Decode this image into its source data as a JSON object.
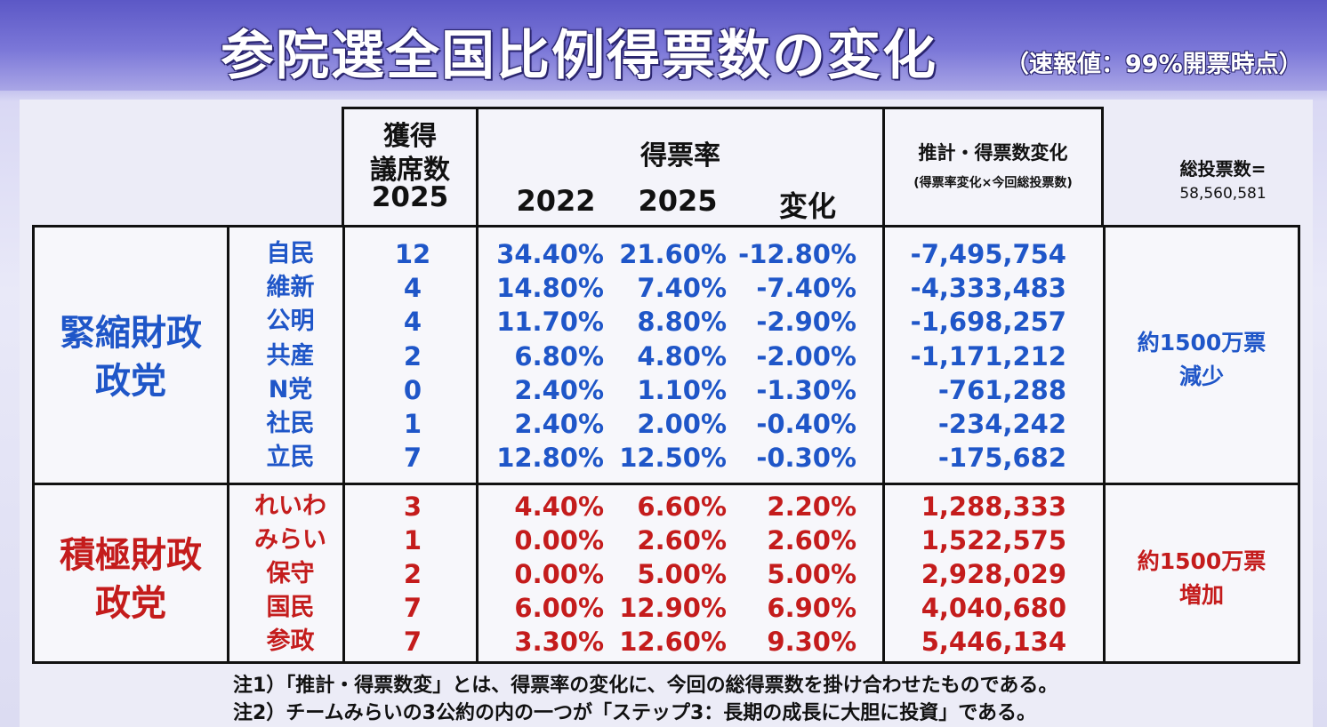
{
  "title": {
    "main": "参院選全国比例得票数の変化",
    "sub": "（速報値：99%開票時点）"
  },
  "headers": {
    "seats_line1": "獲得",
    "seats_line2": "議席数",
    "seats_line3": "2025",
    "rate": "得票率",
    "year_2022": "2022",
    "year_2025": "2025",
    "change": "変化",
    "estimate": "推計・得票数変化",
    "estimate_sub": "(得票率変化×今回総投票数)",
    "total_label": "総投票数=",
    "total_value": "58,560,581"
  },
  "groups": {
    "austerity": {
      "line1": "緊縮財政",
      "line2": "政党",
      "summary1": "約1500万票",
      "summary2": "減少"
    },
    "expansion": {
      "line1": "積極財政",
      "line2": "政党",
      "summary1": "約1500万票",
      "summary2": "増加"
    }
  },
  "rows_austerity": [
    {
      "party": "自民",
      "seats": "12",
      "r2022": "34.40%",
      "r2025": "21.60%",
      "change": "-12.80%",
      "estimate": "-7,495,754"
    },
    {
      "party": "維新",
      "seats": "4",
      "r2022": "14.80%",
      "r2025": "7.40%",
      "change": "-7.40%",
      "estimate": "-4,333,483"
    },
    {
      "party": "公明",
      "seats": "4",
      "r2022": "11.70%",
      "r2025": "8.80%",
      "change": "-2.90%",
      "estimate": "-1,698,257"
    },
    {
      "party": "共産",
      "seats": "2",
      "r2022": "6.80%",
      "r2025": "4.80%",
      "change": "-2.00%",
      "estimate": "-1,171,212"
    },
    {
      "party": "N党",
      "seats": "0",
      "r2022": "2.40%",
      "r2025": "1.10%",
      "change": "-1.30%",
      "estimate": "-761,288"
    },
    {
      "party": "社民",
      "seats": "1",
      "r2022": "2.40%",
      "r2025": "2.00%",
      "change": "-0.40%",
      "estimate": "-234,242"
    },
    {
      "party": "立民",
      "seats": "7",
      "r2022": "12.80%",
      "r2025": "12.50%",
      "change": "-0.30%",
      "estimate": "-175,682"
    }
  ],
  "rows_expansion": [
    {
      "party": "れいわ",
      "seats": "3",
      "r2022": "4.40%",
      "r2025": "6.60%",
      "change": "2.20%",
      "estimate": "1,288,333"
    },
    {
      "party": "みらい",
      "seats": "1",
      "r2022": "0.00%",
      "r2025": "2.60%",
      "change": "2.60%",
      "estimate": "1,522,575"
    },
    {
      "party": "保守",
      "seats": "2",
      "r2022": "0.00%",
      "r2025": "5.00%",
      "change": "5.00%",
      "estimate": "2,928,029"
    },
    {
      "party": "国民",
      "seats": "7",
      "r2022": "6.00%",
      "r2025": "12.90%",
      "change": "6.90%",
      "estimate": "4,040,680"
    },
    {
      "party": "参政",
      "seats": "7",
      "r2022": "3.30%",
      "r2025": "12.60%",
      "change": "9.30%",
      "estimate": "5,446,134"
    }
  ],
  "notes": {
    "note1": "注1）「推計・得票数変」とは、得票率の変化に、今回の総得票数を掛け合わせたものである。",
    "note2": "注2）チームみらいの3公約の内の一つが「ステップ3：長期の成長に大胆に投資」である。"
  },
  "colors": {
    "austerity": "#1f56c8",
    "expansion": "#c41c1c"
  }
}
